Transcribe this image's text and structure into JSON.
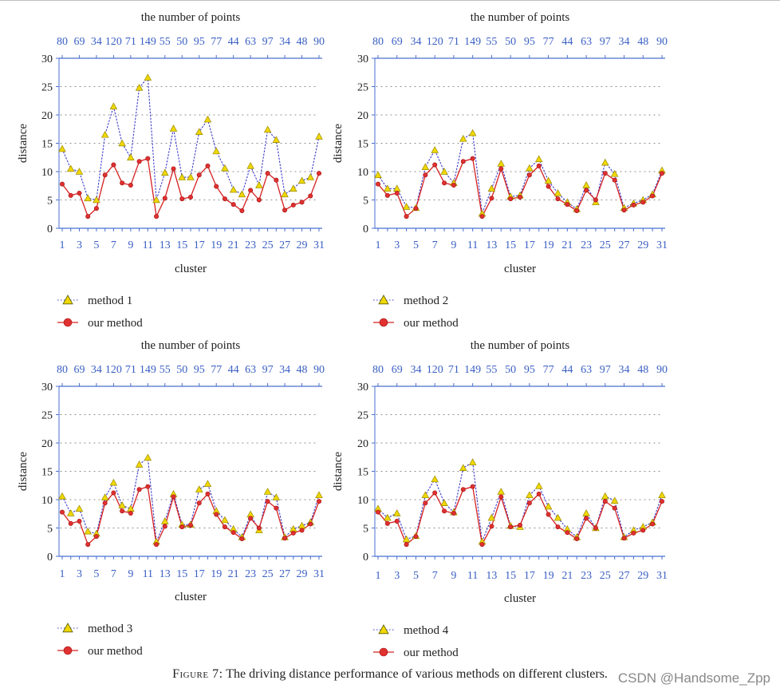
{
  "figure": {
    "caption_label": "Figure 7:",
    "caption_text": "The driving distance performance of various methods on different clusters.",
    "watermark": "CSDN @Handsome_Zpp"
  },
  "colors": {
    "axis_blue": "#4a6fd1",
    "tick_text_blue": "#3a5fc4",
    "other_line": "#3a3acb",
    "other_fill": "#f0d800",
    "our_line": "#d62020",
    "our_fill": "#e03030",
    "grid": "#888888",
    "text": "#222222"
  },
  "chart_data": [
    {
      "type": "line",
      "title": "the number of points",
      "xlabel": "cluster",
      "ylabel": "distance",
      "ylim": [
        0,
        30
      ],
      "yticks": [
        0,
        5,
        10,
        15,
        20,
        25,
        30
      ],
      "x": [
        1,
        2,
        3,
        4,
        5,
        6,
        7,
        8,
        9,
        10,
        11,
        12,
        13,
        14,
        15,
        16,
        17,
        18,
        19,
        20,
        21,
        22,
        23,
        24,
        25,
        26,
        27,
        28,
        29,
        30,
        31
      ],
      "xtick_labels": [
        "1",
        "3",
        "5",
        "7",
        "9",
        "11",
        "13",
        "15",
        "17",
        "19",
        "21",
        "23",
        "25",
        "27",
        "29",
        "31"
      ],
      "top_tick_labels": [
        "80",
        "69",
        "34",
        "120",
        "71",
        "149",
        "55",
        "50",
        "95",
        "77",
        "44",
        "63",
        "97",
        "34",
        "48",
        "90"
      ],
      "grid": "horizontal dotted",
      "legend_position": "bottom-left",
      "series": [
        {
          "name": "method 1",
          "style": "dotted-triangle",
          "values": [
            14.0,
            10.5,
            10.0,
            5.3,
            5.0,
            16.5,
            21.5,
            15.0,
            12.5,
            24.8,
            26.6,
            5.0,
            9.8,
            17.6,
            9.0,
            9.0,
            17.0,
            19.2,
            13.6,
            10.6,
            6.8,
            6.0,
            11.0,
            7.6,
            17.4,
            15.6,
            6.0,
            7.0,
            8.4,
            9.0,
            16.2
          ]
        },
        {
          "name": "our method",
          "style": "solid-circle",
          "values": [
            7.8,
            5.8,
            6.2,
            2.1,
            3.5,
            9.4,
            11.2,
            8.0,
            7.6,
            11.8,
            12.3,
            2.1,
            5.3,
            10.5,
            5.2,
            5.5,
            9.4,
            11.0,
            7.4,
            5.2,
            4.2,
            3.1,
            6.7,
            5.0,
            9.7,
            8.5,
            3.2,
            4.1,
            4.6,
            5.7,
            9.7
          ]
        }
      ]
    },
    {
      "type": "line",
      "title": "the number of points",
      "xlabel": "cluster",
      "ylabel": "distance",
      "ylim": [
        0,
        30
      ],
      "yticks": [
        0,
        5,
        10,
        15,
        20,
        25,
        30
      ],
      "x": [
        1,
        2,
        3,
        4,
        5,
        6,
        7,
        8,
        9,
        10,
        11,
        12,
        13,
        14,
        15,
        16,
        17,
        18,
        19,
        20,
        21,
        22,
        23,
        24,
        25,
        26,
        27,
        28,
        29,
        30,
        31
      ],
      "xtick_labels": [
        "1",
        "3",
        "5",
        "7",
        "9",
        "11",
        "13",
        "15",
        "17",
        "19",
        "21",
        "23",
        "25",
        "27",
        "29",
        "31"
      ],
      "top_tick_labels": [
        "80",
        "69",
        "34",
        "120",
        "71",
        "149",
        "55",
        "50",
        "95",
        "77",
        "44",
        "63",
        "97",
        "34",
        "48",
        "90"
      ],
      "grid": "horizontal dotted",
      "legend_position": "bottom-left",
      "series": [
        {
          "name": "method 2",
          "style": "dotted-triangle",
          "values": [
            9.4,
            7.0,
            7.0,
            3.8,
            3.6,
            10.8,
            13.8,
            10.0,
            8.0,
            15.8,
            16.8,
            2.6,
            7.0,
            11.4,
            5.6,
            5.8,
            10.6,
            12.2,
            8.4,
            6.2,
            4.6,
            3.4,
            7.6,
            4.6,
            11.6,
            9.6,
            3.6,
            4.4,
            5.0,
            6.0,
            10.2
          ]
        },
        {
          "name": "our method",
          "style": "solid-circle",
          "values": [
            7.8,
            5.8,
            6.2,
            2.1,
            3.5,
            9.4,
            11.2,
            8.0,
            7.6,
            11.8,
            12.3,
            2.1,
            5.3,
            10.5,
            5.2,
            5.5,
            9.4,
            11.0,
            7.4,
            5.2,
            4.2,
            3.1,
            6.7,
            5.0,
            9.7,
            8.5,
            3.2,
            4.1,
            4.6,
            5.7,
            9.7
          ]
        }
      ]
    },
    {
      "type": "line",
      "title": "the number of points",
      "xlabel": "cluster",
      "ylabel": "distance",
      "ylim": [
        0,
        30
      ],
      "yticks": [
        0,
        5,
        10,
        15,
        20,
        25,
        30
      ],
      "x": [
        1,
        2,
        3,
        4,
        5,
        6,
        7,
        8,
        9,
        10,
        11,
        12,
        13,
        14,
        15,
        16,
        17,
        18,
        19,
        20,
        21,
        22,
        23,
        24,
        25,
        26,
        27,
        28,
        29,
        30,
        31
      ],
      "xtick_labels": [
        "1",
        "3",
        "5",
        "7",
        "9",
        "11",
        "13",
        "15",
        "17",
        "19",
        "21",
        "23",
        "25",
        "27",
        "29",
        "31"
      ],
      "top_tick_labels": [
        "80",
        "69",
        "34",
        "120",
        "71",
        "149",
        "55",
        "50",
        "95",
        "77",
        "44",
        "63",
        "97",
        "34",
        "48",
        "90"
      ],
      "grid": "horizontal dotted",
      "legend_position": "bottom-left",
      "series": [
        {
          "name": "method 3",
          "style": "dotted-triangle",
          "values": [
            10.6,
            7.6,
            8.4,
            4.4,
            4.0,
            10.4,
            13.0,
            9.0,
            8.4,
            16.2,
            17.4,
            2.6,
            6.2,
            11.0,
            5.6,
            5.6,
            11.8,
            12.8,
            8.0,
            6.4,
            4.8,
            3.4,
            7.4,
            4.6,
            11.4,
            10.4,
            3.4,
            4.8,
            5.4,
            6.0,
            10.8
          ]
        },
        {
          "name": "our method",
          "style": "solid-circle",
          "values": [
            7.8,
            5.8,
            6.2,
            2.1,
            3.5,
            9.4,
            11.2,
            8.0,
            7.6,
            11.8,
            12.3,
            2.1,
            5.3,
            10.5,
            5.2,
            5.5,
            9.4,
            11.0,
            7.4,
            5.2,
            4.2,
            3.1,
            6.7,
            5.0,
            9.7,
            8.5,
            3.2,
            4.1,
            4.6,
            5.7,
            9.7
          ]
        }
      ]
    },
    {
      "type": "line",
      "title": "the number of points",
      "xlabel": "cluster",
      "ylabel": "distance",
      "ylim": [
        0,
        30
      ],
      "yticks": [
        0,
        5,
        10,
        15,
        20,
        25,
        30
      ],
      "x": [
        1,
        2,
        3,
        4,
        5,
        6,
        7,
        8,
        9,
        10,
        11,
        12,
        13,
        14,
        15,
        16,
        17,
        18,
        19,
        20,
        21,
        22,
        23,
        24,
        25,
        26,
        27,
        28,
        29,
        30,
        31
      ],
      "xtick_labels": [
        "1",
        "3",
        "5",
        "7",
        "9",
        "11",
        "13",
        "15",
        "17",
        "19",
        "21",
        "23",
        "25",
        "27",
        "29",
        "31"
      ],
      "top_tick_labels": [
        "80",
        "69",
        "34",
        "120",
        "71",
        "149",
        "55",
        "50",
        "95",
        "77",
        "44",
        "63",
        "97",
        "34",
        "48",
        "90"
      ],
      "grid": "horizontal dotted",
      "legend_position": "bottom-left",
      "series": [
        {
          "name": "method 4",
          "style": "dotted-triangle",
          "values": [
            8.4,
            6.8,
            7.6,
            3.0,
            3.6,
            10.8,
            13.6,
            9.4,
            7.8,
            15.6,
            16.6,
            2.6,
            6.8,
            11.4,
            5.4,
            5.2,
            10.8,
            12.4,
            8.8,
            6.8,
            4.8,
            3.4,
            7.6,
            5.0,
            10.6,
            9.8,
            3.4,
            4.6,
            5.2,
            6.0,
            10.8
          ]
        },
        {
          "name": "our method",
          "style": "solid-circle",
          "values": [
            7.8,
            5.8,
            6.2,
            2.1,
            3.5,
            9.4,
            11.2,
            8.0,
            7.6,
            11.8,
            12.3,
            2.1,
            5.3,
            10.5,
            5.2,
            5.5,
            9.4,
            11.0,
            7.4,
            5.2,
            4.2,
            3.1,
            6.7,
            5.0,
            9.7,
            8.5,
            3.2,
            4.1,
            4.6,
            5.7,
            9.7
          ]
        }
      ]
    }
  ]
}
